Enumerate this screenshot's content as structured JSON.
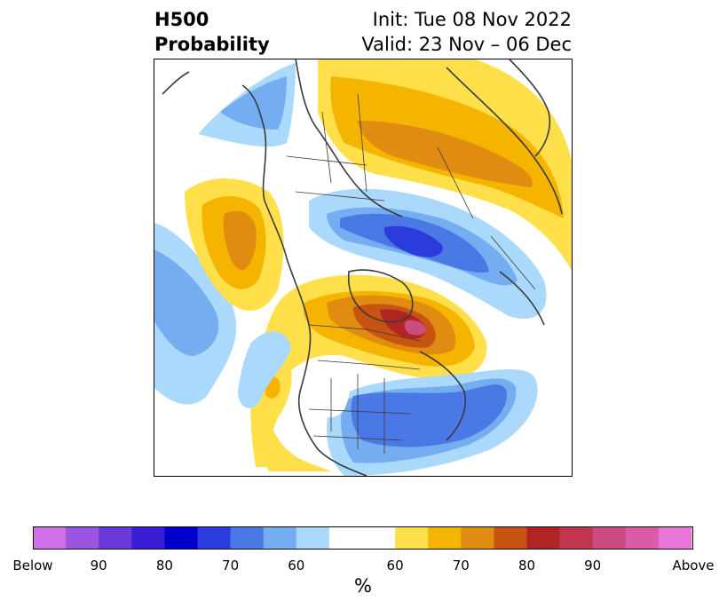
{
  "title": {
    "left_line1": "H500",
    "left_line2": "Probability",
    "right_line1": "Init: Tue 08 Nov 2022",
    "right_line2": "Valid: 23 Nov – 06 Dec"
  },
  "colorbar": {
    "unit": "%",
    "below_colors": [
      "#d070e8",
      "#9b55e0",
      "#6a3ad8",
      "#3a1ed6",
      "#0000cc",
      "#2a3ddc",
      "#4a78e4",
      "#74aef0",
      "#abd9fb"
    ],
    "neutral_color": "#ffffff",
    "above_colors": [
      "#ffe04a",
      "#f4b400",
      "#e08c10",
      "#c85414",
      "#b02424",
      "#c03650",
      "#cc4c80",
      "#d85ca8",
      "#e876d8"
    ],
    "labels": [
      "Below",
      "90",
      "80",
      "70",
      "60",
      "60",
      "70",
      "80",
      "90",
      "Above"
    ]
  }
}
